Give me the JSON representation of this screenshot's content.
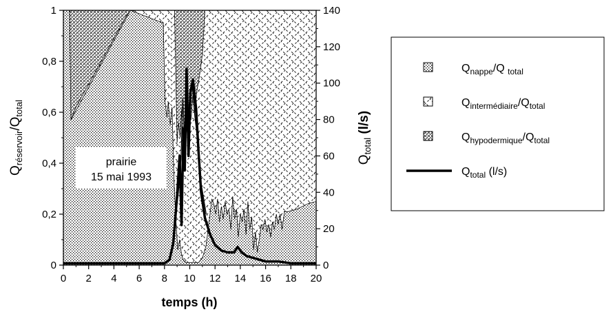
{
  "chart_data": {
    "type": "area",
    "x_label": "temps (h)",
    "y_left_label": {
      "base": "Q",
      "sub1": "réservoir",
      "mid": "/Q",
      "sub2": "total"
    },
    "y_right_label": {
      "base": "Q",
      "sub": "total",
      "unit": " (l/s)"
    },
    "x_range": [
      0,
      20
    ],
    "y_left_range": [
      0,
      1
    ],
    "y_right_range": [
      0,
      140
    ],
    "x_ticks": [
      "0",
      "2",
      "4",
      "6",
      "8",
      "10",
      "12",
      "14",
      "16",
      "18",
      "20"
    ],
    "y_left_ticks": [
      "0",
      "0,2",
      "0,4",
      "0,6",
      "0,8",
      "1"
    ],
    "y_right_ticks": [
      "0",
      "20",
      "40",
      "60",
      "80",
      "100",
      "120",
      "140"
    ],
    "annotation": [
      "prairie",
      "15 mai 1993"
    ],
    "legend": [
      {
        "key": "nappe",
        "base": "Q",
        "sub": "nappe",
        "mid": "/Q ",
        "sub2": "total",
        "tail": "",
        "swatch": "dots"
      },
      {
        "key": "intermediaire",
        "base": "Q",
        "sub": "intermédiaire",
        "mid": "/Q",
        "sub2": "total",
        "tail": "",
        "swatch": "diamond"
      },
      {
        "key": "hypodermique",
        "base": "Q",
        "sub": "hypodermique",
        "mid": "/Q",
        "sub2": "total",
        "tail": "",
        "swatch": "hatch"
      },
      {
        "key": "total",
        "base": "Q",
        "sub": "total",
        "mid": "",
        "sub2": "",
        "tail": " (l/s)",
        "swatch": "line"
      }
    ],
    "series": [
      {
        "name": "nappe_upper",
        "axis": "left",
        "x": [
          0,
          0.5,
          0.6,
          5.3,
          7.9,
          8.05,
          8.2,
          8.3,
          8.45,
          8.6,
          8.75,
          8.9,
          9.05,
          9.2,
          9.35,
          9.5,
          9.65,
          9.8,
          9.95,
          10.1,
          10.25,
          10.4,
          10.55,
          10.7,
          10.85,
          11,
          11.15,
          11.3,
          11.45,
          11.6,
          11.75,
          11.9,
          12.05,
          12.2,
          12.35,
          12.5,
          12.65,
          12.8,
          12.95,
          13.1,
          13.25,
          13.4,
          13.55,
          13.7,
          13.85,
          14,
          14.15,
          14.3,
          14.45,
          14.6,
          14.75,
          14.9,
          15.05,
          15.2,
          15.35,
          15.5,
          15.65,
          15.8,
          15.95,
          16.1,
          16.25,
          16.4,
          16.55,
          16.7,
          16.85,
          17,
          17.15,
          17.3,
          17.5,
          17.8,
          18.5,
          19.3,
          20
        ],
        "y": [
          1,
          1,
          0.57,
          1,
          0.95,
          0.64,
          0.58,
          0.64,
          0.55,
          0.62,
          0.33,
          0.18,
          0.06,
          0.1,
          0.04,
          0.02,
          0.01,
          0.01,
          0.01,
          0.01,
          0.01,
          0.01,
          0.01,
          0.01,
          0.02,
          0.03,
          0.05,
          0.08,
          0.14,
          0.2,
          0.26,
          0.24,
          0.2,
          0.26,
          0.17,
          0.23,
          0.18,
          0.25,
          0.2,
          0.22,
          0.14,
          0.27,
          0.18,
          0.22,
          0.11,
          0.2,
          0.17,
          0.22,
          0.12,
          0.25,
          0.14,
          0.19,
          0.06,
          0.13,
          0.05,
          0.1,
          0.16,
          0.14,
          0.18,
          0.13,
          0.16,
          0.11,
          0.17,
          0.14,
          0.2,
          0.16,
          0.2,
          0.14,
          0.21,
          0.21,
          0.22,
          0.24,
          0.25
        ]
      },
      {
        "name": "hypodermique_lower",
        "axis": "left",
        "x": [
          0,
          0.15,
          0.3,
          0.45,
          0.6,
          1,
          2,
          3,
          4,
          5,
          5.6,
          20
        ],
        "y": [
          1,
          1,
          1,
          0.62,
          0.57,
          0.62,
          0.71,
          0.8,
          0.89,
          0.98,
          1,
          1
        ]
      },
      {
        "name": "hypodermique_lower_b",
        "axis": "left",
        "x": [
          8.8,
          9.0,
          9.1,
          9.25,
          9.35,
          9.5,
          9.65,
          9.8,
          9.95,
          10.1,
          10.25,
          10.4,
          10.55,
          10.7,
          10.85,
          11,
          11.2
        ],
        "y": [
          1,
          0.48,
          0.56,
          0.5,
          0.61,
          0.45,
          0.59,
          0.52,
          0.64,
          0.57,
          0.67,
          0.6,
          0.68,
          0.72,
          0.77,
          0.83,
          1
        ]
      },
      {
        "name": "Q_total",
        "axis": "right",
        "x": [
          0,
          6,
          8,
          8.4,
          8.7,
          9.0,
          9.2,
          9.35,
          9.5,
          9.6,
          9.75,
          9.9,
          10.05,
          10.25,
          10.5,
          10.7,
          10.9,
          11.2,
          11.6,
          12,
          12.5,
          13,
          13.5,
          13.8,
          14.1,
          14.5,
          15,
          15.5,
          16,
          17,
          18,
          19,
          20
        ],
        "y": [
          1,
          1,
          1,
          3,
          12,
          38,
          60,
          22,
          75,
          52,
          108,
          60,
          95,
          102,
          86,
          62,
          40,
          26,
          17,
          11,
          8,
          7,
          7,
          10,
          7,
          5,
          4,
          3,
          2,
          2,
          1,
          1,
          1
        ]
      },
      {
        "name": "Q_total_thin",
        "axis": "right",
        "x": [
          8.5,
          8.8,
          9.1,
          9.3,
          9.45,
          9.6,
          9.75,
          9.9,
          10.05,
          10.2,
          10.4,
          10.6,
          10.9,
          11.3
        ],
        "y": [
          5,
          22,
          40,
          58,
          92,
          66,
          104,
          80,
          96,
          98,
          82,
          70,
          45,
          28
        ]
      }
    ]
  }
}
